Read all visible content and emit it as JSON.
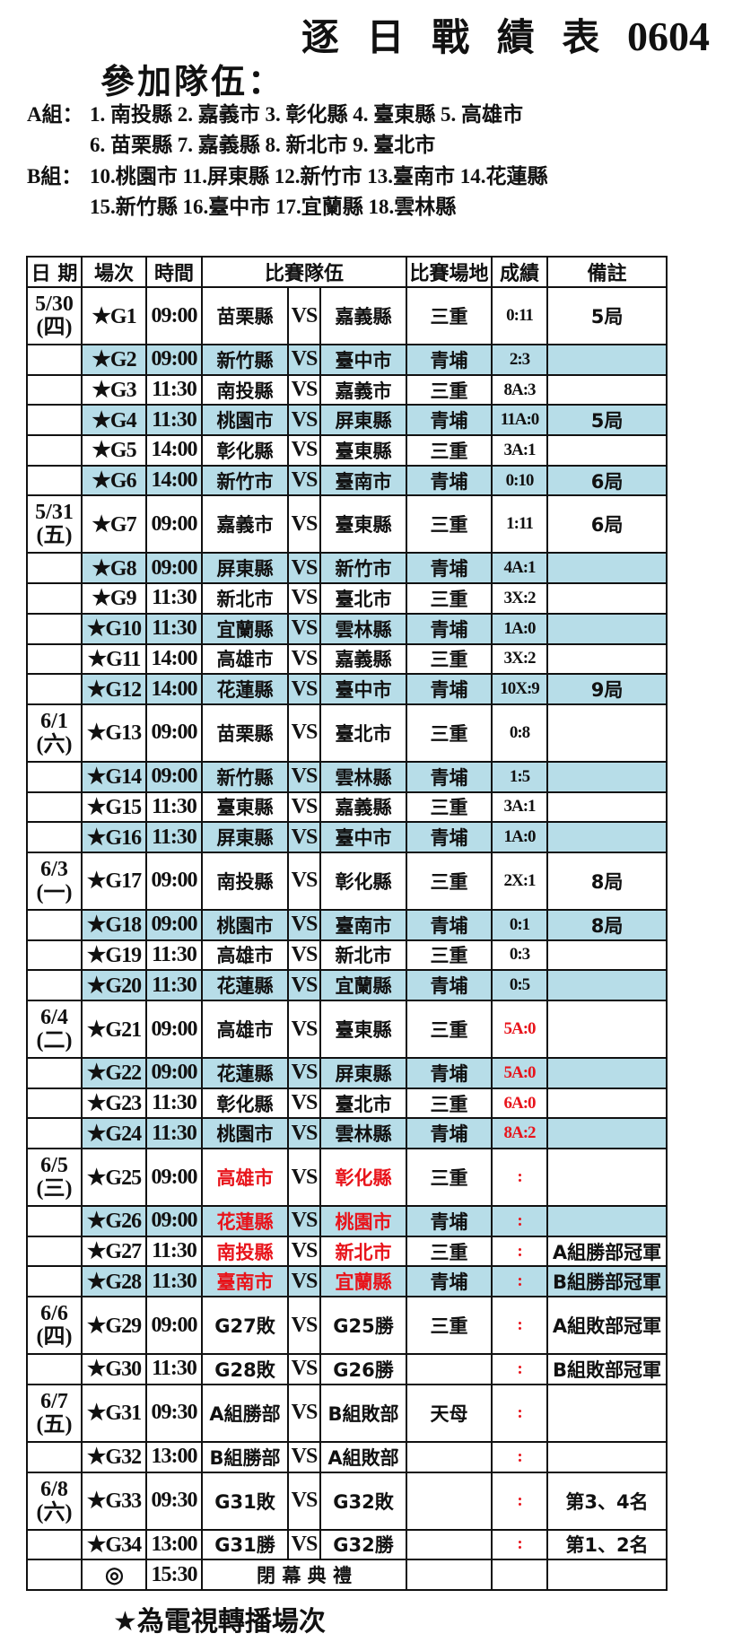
{
  "title": {
    "text": "逐 日 戰 績 表 ",
    "code": "0604"
  },
  "participants_heading": "參加隊伍：",
  "groups": [
    {
      "label": "A組：",
      "lines": [
        "1. 南投縣 2. 嘉義市 3. 彰化縣 4. 臺東縣 5. 高雄市",
        "6. 苗栗縣 7. 嘉義縣 8. 新北市 9. 臺北市"
      ]
    },
    {
      "label": "B組：",
      "lines": [
        "10.桃園市 11.屏東縣 12.新竹市 13.臺南市 14.花蓮縣",
        "15.新竹縣 16.臺中市 17.宜蘭縣 18.雲林縣"
      ]
    }
  ],
  "colors": {
    "shade": "#b7dde8",
    "highlight_red": "#e8141b",
    "border": "#111111"
  },
  "table": {
    "headers": {
      "date": "日 期",
      "game": "場次",
      "time": "時間",
      "teams": "比賽隊伍",
      "venue": "比賽場地",
      "score": "成績",
      "note": "備註"
    },
    "rows": [
      {
        "date": "5/30",
        "day": "(四)",
        "game": "★G1",
        "time": "09:00",
        "team_a": "苗栗縣",
        "vs": "VS",
        "team_b": "嘉義縣",
        "venue": "三重",
        "score": "0:11",
        "note": "5局"
      },
      {
        "game": "★G2",
        "time": "09:00",
        "team_a": "新竹縣",
        "vs": "VS",
        "team_b": "臺中市",
        "venue": "青埔",
        "score": "2:3",
        "note": "",
        "shaded": true
      },
      {
        "game": "★G3",
        "time": "11:30",
        "team_a": "南投縣",
        "vs": "VS",
        "team_b": "嘉義市",
        "venue": "三重",
        "score": "8A:3",
        "note": ""
      },
      {
        "game": "★G4",
        "time": "11:30",
        "team_a": "桃園市",
        "vs": "VS",
        "team_b": "屏東縣",
        "venue": "青埔",
        "score": "11A:0",
        "note": "5局",
        "shaded": true
      },
      {
        "game": "★G5",
        "time": "14:00",
        "team_a": "彰化縣",
        "vs": "VS",
        "team_b": "臺東縣",
        "venue": "三重",
        "score": "3A:1",
        "note": ""
      },
      {
        "game": "★G6",
        "time": "14:00",
        "team_a": "新竹市",
        "vs": "VS",
        "team_b": "臺南市",
        "venue": "青埔",
        "score": "0:10",
        "note": "6局",
        "shaded": true
      },
      {
        "date": "5/31",
        "day": "(五)",
        "game": "★G7",
        "time": "09:00",
        "team_a": "嘉義市",
        "vs": "VS",
        "team_b": "臺東縣",
        "venue": "三重",
        "score": "1:11",
        "note": "6局"
      },
      {
        "game": "★G8",
        "time": "09:00",
        "team_a": "屏東縣",
        "vs": "VS",
        "team_b": "新竹市",
        "venue": "青埔",
        "score": "4A:1",
        "note": "",
        "shaded": true
      },
      {
        "game": "★G9",
        "time": "11:30",
        "team_a": "新北市",
        "vs": "VS",
        "team_b": "臺北市",
        "venue": "三重",
        "score": "3X:2",
        "note": ""
      },
      {
        "game": "★G10",
        "time": "11:30",
        "team_a": "宜蘭縣",
        "vs": "VS",
        "team_b": "雲林縣",
        "venue": "青埔",
        "score": "1A:0",
        "note": "",
        "shaded": true
      },
      {
        "game": "★G11",
        "time": "14:00",
        "team_a": "高雄市",
        "vs": "VS",
        "team_b": "嘉義縣",
        "venue": "三重",
        "score": "3X:2",
        "note": ""
      },
      {
        "game": "★G12",
        "time": "14:00",
        "team_a": "花蓮縣",
        "vs": "VS",
        "team_b": "臺中市",
        "venue": "青埔",
        "score": "10X:9",
        "note": "9局",
        "shaded": true
      },
      {
        "date": "6/1",
        "day": "(六)",
        "game": "★G13",
        "time": "09:00",
        "team_a": "苗栗縣",
        "vs": "VS",
        "team_b": "臺北市",
        "venue": "三重",
        "score": "0:8",
        "note": ""
      },
      {
        "game": "★G14",
        "time": "09:00",
        "team_a": "新竹縣",
        "vs": "VS",
        "team_b": "雲林縣",
        "venue": "青埔",
        "score": "1:5",
        "note": "",
        "shaded": true
      },
      {
        "game": "★G15",
        "time": "11:30",
        "team_a": "臺東縣",
        "vs": "VS",
        "team_b": "嘉義縣",
        "venue": "三重",
        "score": "3A:1",
        "note": ""
      },
      {
        "game": "★G16",
        "time": "11:30",
        "team_a": "屏東縣",
        "vs": "VS",
        "team_b": "臺中市",
        "venue": "青埔",
        "score": "1A:0",
        "note": "",
        "shaded": true
      },
      {
        "date": "6/3",
        "day": "(一)",
        "game": "★G17",
        "time": "09:00",
        "team_a": "南投縣",
        "vs": "VS",
        "team_b": "彰化縣",
        "venue": "三重",
        "score": "2X:1",
        "note": "8局"
      },
      {
        "game": "★G18",
        "time": "09:00",
        "team_a": "桃園市",
        "vs": "VS",
        "team_b": "臺南市",
        "venue": "青埔",
        "score": "0:1",
        "note": "8局",
        "shaded": true
      },
      {
        "game": "★G19",
        "time": "11:30",
        "team_a": "高雄市",
        "vs": "VS",
        "team_b": "新北市",
        "venue": "三重",
        "score": "0:3",
        "note": ""
      },
      {
        "game": "★G20",
        "time": "11:30",
        "team_a": "花蓮縣",
        "vs": "VS",
        "team_b": "宜蘭縣",
        "venue": "青埔",
        "score": "0:5",
        "note": "",
        "shaded": true
      },
      {
        "date": "6/4",
        "day": "(二)",
        "game": "★G21",
        "time": "09:00",
        "team_a": "高雄市",
        "vs": "VS",
        "team_b": "臺東縣",
        "venue": "三重",
        "score": "5A:0",
        "note": "",
        "red_score": true
      },
      {
        "game": "★G22",
        "time": "09:00",
        "team_a": "花蓮縣",
        "vs": "VS",
        "team_b": "屏東縣",
        "venue": "青埔",
        "score": "5A:0",
        "note": "",
        "shaded": true,
        "red_score": true
      },
      {
        "game": "★G23",
        "time": "11:30",
        "team_a": "彰化縣",
        "vs": "VS",
        "team_b": "臺北市",
        "venue": "三重",
        "score": "6A:0",
        "note": "",
        "red_score": true
      },
      {
        "game": "★G24",
        "time": "11:30",
        "team_a": "桃園市",
        "vs": "VS",
        "team_b": "雲林縣",
        "venue": "青埔",
        "score": "8A:2",
        "note": "",
        "shaded": true,
        "red_score": true
      },
      {
        "date": "6/5",
        "day": "(三)",
        "game": "★G25",
        "time": "09:00",
        "team_a": "高雄市",
        "vs": "VS",
        "team_b": "彰化縣",
        "venue": "三重",
        "score": ":",
        "note": "",
        "red_score": true,
        "red_teams": true
      },
      {
        "game": "★G26",
        "time": "09:00",
        "team_a": "花蓮縣",
        "vs": "VS",
        "team_b": "桃園市",
        "venue": "青埔",
        "score": ":",
        "note": "",
        "shaded": true,
        "red_score": true,
        "red_teams": true
      },
      {
        "game": "★G27",
        "time": "11:30",
        "team_a": "南投縣",
        "vs": "VS",
        "team_b": "新北市",
        "venue": "三重",
        "score": ":",
        "note": "A組勝部冠軍",
        "red_score": true,
        "red_teams": true
      },
      {
        "game": "★G28",
        "time": "11:30",
        "team_a": "臺南市",
        "vs": "VS",
        "team_b": "宜蘭縣",
        "venue": "青埔",
        "score": ":",
        "note": "B組勝部冠軍",
        "shaded": true,
        "red_score": true,
        "red_teams": true
      },
      {
        "date": "6/6",
        "day": "(四)",
        "game": "★G29",
        "time": "09:00",
        "team_a": "G27敗",
        "vs": "VS",
        "team_b": "G25勝",
        "venue": "三重",
        "score": ":",
        "note": "A組敗部冠軍",
        "red_score": true
      },
      {
        "game": "★G30",
        "time": "11:30",
        "team_a": "G28敗",
        "vs": "VS",
        "team_b": "G26勝",
        "venue": "",
        "score": ":",
        "note": "B組敗部冠軍",
        "red_score": true
      },
      {
        "date": "6/7",
        "day": "(五)",
        "game": "★G31",
        "time": "09:30",
        "team_a": "A組勝部",
        "vs": "VS",
        "team_b": "B組敗部",
        "venue": "天母",
        "score": ":",
        "note": "",
        "red_score": true
      },
      {
        "game": "★G32",
        "time": "13:00",
        "team_a": "B組勝部",
        "vs": "VS",
        "team_b": "A組敗部",
        "venue": "",
        "score": ":",
        "note": "",
        "red_score": true
      },
      {
        "date": "6/8",
        "day": "(六)",
        "game": "★G33",
        "time": "09:30",
        "team_a": "G31敗",
        "vs": "VS",
        "team_b": "G32敗",
        "venue": "",
        "score": ":",
        "note": "第3、4名",
        "red_score": true
      },
      {
        "game": "★G34",
        "time": "13:00",
        "team_a": "G31勝",
        "vs": "VS",
        "team_b": "G32勝",
        "venue": "",
        "score": ":",
        "note": "第1、2名",
        "red_score": true
      }
    ],
    "closing": {
      "game": "◎",
      "time": "15:30",
      "event": "閉 幕 典 禮"
    }
  },
  "footer_note": "★為電視轉播場次"
}
